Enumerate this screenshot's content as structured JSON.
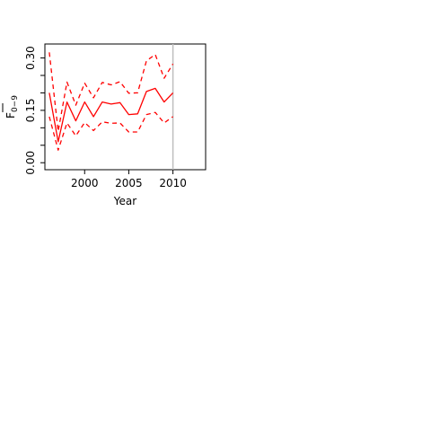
{
  "chart_data": {
    "type": "line",
    "xlabel": "Year",
    "ylabel_main": "F",
    "ylabel_sub": "0−9",
    "xlim": [
      1995.5,
      2013.7
    ],
    "ylim": [
      -0.02,
      0.34
    ],
    "x_ticks": [
      2000,
      2005,
      2010
    ],
    "x_tick_labels": [
      "2000",
      "2005",
      "2010"
    ],
    "y_ticks": [
      0.0,
      0.05,
      0.1,
      0.15,
      0.2,
      0.25,
      0.3
    ],
    "y_tick_labels": [
      "0.00",
      "",
      "",
      "0.15",
      "",
      "",
      "0.30"
    ],
    "vline_x": 2010,
    "vline_color": "#bebebe",
    "series_color": "#ff0000",
    "grid": false,
    "series": [
      {
        "style": "solid",
        "x": [
          1996,
          1997,
          1998,
          1999,
          2000,
          2001,
          2002,
          2003,
          2004,
          2005,
          2006,
          2007,
          2008,
          2009,
          2010
        ],
        "y": [
          0.2,
          0.06,
          0.174,
          0.12,
          0.174,
          0.132,
          0.174,
          0.168,
          0.172,
          0.138,
          0.14,
          0.204,
          0.213,
          0.174,
          0.2
        ]
      },
      {
        "style": "dashed",
        "x": [
          1996,
          1997,
          1998,
          1999,
          2000,
          2001,
          2002,
          2003,
          2004,
          2005,
          2006,
          2007,
          2008,
          2009,
          2010
        ],
        "y": [
          0.316,
          0.09,
          0.231,
          0.165,
          0.228,
          0.186,
          0.23,
          0.223,
          0.232,
          0.199,
          0.2,
          0.292,
          0.31,
          0.242,
          0.283
        ]
      },
      {
        "style": "dashed",
        "x": [
          1996,
          1997,
          1998,
          1999,
          2000,
          2001,
          2002,
          2003,
          2004,
          2005,
          2006,
          2007,
          2008,
          2009,
          2010
        ],
        "y": [
          0.132,
          0.036,
          0.114,
          0.077,
          0.115,
          0.092,
          0.117,
          0.113,
          0.114,
          0.088,
          0.088,
          0.138,
          0.144,
          0.114,
          0.132
        ]
      }
    ]
  }
}
